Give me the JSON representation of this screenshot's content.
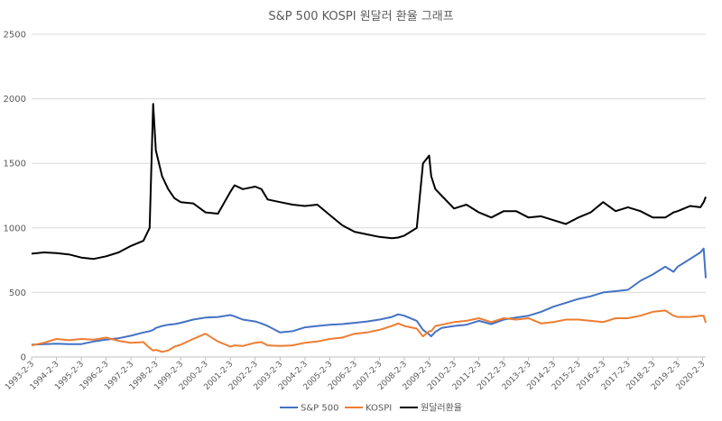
{
  "chart_data": {
    "type": "line",
    "title": "S&P 500 KOSPI 원달러 환율 그래프",
    "xlabel": "",
    "ylabel": "",
    "ylim": [
      0,
      2500
    ],
    "yticks": [
      "0",
      "500",
      "1000",
      "1500",
      "2000",
      "2500"
    ],
    "xticks": [
      "1993-2-3",
      "1994-2-3",
      "1995-2-3",
      "1996-2-3",
      "1997-2-3",
      "1998-2-3",
      "1999-2-3",
      "2000-2-3",
      "2001-2-3",
      "2002-2-3",
      "2003-2-3",
      "2004-2-3",
      "2005-2-3",
      "2006-2-3",
      "2007-2-3",
      "2008-2-3",
      "2009-2-3",
      "2010-2-3",
      "2011-2-3",
      "2012-2-3",
      "2013-2-3",
      "2014-2-3",
      "2015-2-3",
      "2016-2-3",
      "2017-2-3",
      "2018-2-3",
      "2019-2-3",
      "2020-2-3"
    ],
    "grid": true,
    "legend_position": "bottom",
    "x": [
      "1993-2-3",
      "1993-8-3",
      "1994-2-3",
      "1994-8-3",
      "1995-2-3",
      "1995-8-3",
      "1996-2-3",
      "1996-8-3",
      "1997-2-3",
      "1997-8-3",
      "1997-11-3",
      "1997-12-24",
      "1998-2-3",
      "1998-5-3",
      "1998-8-3",
      "1998-11-3",
      "1999-2-3",
      "1999-8-3",
      "2000-2-3",
      "2000-8-3",
      "2001-2-3",
      "2001-4-3",
      "2001-8-3",
      "2002-2-3",
      "2002-5-3",
      "2002-8-3",
      "2003-2-3",
      "2003-8-3",
      "2004-2-3",
      "2004-8-3",
      "2005-2-3",
      "2005-8-3",
      "2006-2-3",
      "2006-8-3",
      "2007-2-3",
      "2007-8-3",
      "2007-11-3",
      "2008-2-3",
      "2008-8-3",
      "2008-11-3",
      "2009-2-3",
      "2009-3-3",
      "2009-5-3",
      "2009-8-3",
      "2010-2-3",
      "2010-8-3",
      "2011-2-3",
      "2011-8-3",
      "2012-2-3",
      "2012-8-3",
      "2013-2-3",
      "2013-8-3",
      "2014-2-3",
      "2014-8-3",
      "2015-2-3",
      "2015-8-3",
      "2016-2-3",
      "2016-8-3",
      "2017-2-3",
      "2017-8-3",
      "2018-2-3",
      "2018-8-3",
      "2018-12-3",
      "2019-2-3",
      "2019-8-3",
      "2020-1-3",
      "2020-2-20",
      "2020-3-20"
    ],
    "series": [
      {
        "name": "S&P 500",
        "color": "#4472c4",
        "values": [
          95,
          100,
          103,
          100,
          100,
          120,
          135,
          145,
          165,
          190,
          200,
          210,
          225,
          240,
          250,
          255,
          265,
          290,
          305,
          310,
          325,
          315,
          290,
          275,
          260,
          240,
          190,
          200,
          230,
          240,
          250,
          255,
          265,
          275,
          290,
          310,
          330,
          320,
          280,
          210,
          175,
          160,
          195,
          225,
          240,
          250,
          280,
          255,
          290,
          305,
          320,
          350,
          390,
          420,
          450,
          470,
          500,
          510,
          520,
          590,
          640,
          700,
          660,
          700,
          760,
          810,
          840,
          610
        ]
      },
      {
        "name": "KOSPI",
        "color": "#ed7d31",
        "values": [
          90,
          110,
          140,
          130,
          140,
          135,
          150,
          125,
          110,
          115,
          70,
          50,
          55,
          40,
          50,
          80,
          95,
          140,
          180,
          120,
          80,
          90,
          85,
          110,
          115,
          90,
          85,
          90,
          110,
          120,
          140,
          150,
          180,
          190,
          210,
          240,
          260,
          240,
          220,
          160,
          200,
          200,
          240,
          250,
          270,
          280,
          300,
          270,
          300,
          290,
          300,
          260,
          270,
          290,
          290,
          280,
          270,
          300,
          300,
          320,
          350,
          360,
          320,
          310,
          310,
          320,
          320,
          265
        ]
      },
      {
        "name": "원달러환율",
        "color": "#000000",
        "values": [
          800,
          810,
          805,
          795,
          770,
          760,
          780,
          810,
          860,
          900,
          1000,
          1960,
          1600,
          1400,
          1300,
          1230,
          1200,
          1190,
          1120,
          1110,
          1280,
          1330,
          1300,
          1320,
          1300,
          1220,
          1200,
          1180,
          1170,
          1180,
          1100,
          1020,
          970,
          950,
          930,
          920,
          925,
          940,
          1000,
          1500,
          1560,
          1400,
          1300,
          1250,
          1150,
          1180,
          1120,
          1080,
          1130,
          1130,
          1080,
          1090,
          1060,
          1030,
          1080,
          1120,
          1200,
          1130,
          1160,
          1130,
          1080,
          1080,
          1120,
          1130,
          1170,
          1160,
          1200,
          1240
        ]
      }
    ]
  }
}
